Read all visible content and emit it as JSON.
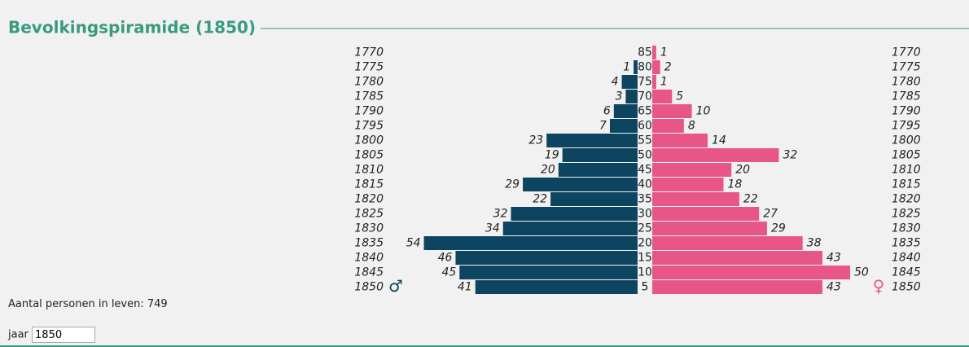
{
  "header": {
    "title": "Bevolkingspiramide (1850)"
  },
  "chart_data": {
    "type": "pyramid",
    "categories": [
      85,
      80,
      75,
      70,
      65,
      60,
      55,
      50,
      45,
      40,
      35,
      30,
      25,
      20,
      15,
      10,
      5
    ],
    "years": [
      1770,
      1775,
      1780,
      1785,
      1790,
      1795,
      1800,
      1805,
      1810,
      1815,
      1820,
      1825,
      1830,
      1835,
      1840,
      1845,
      1850
    ],
    "series": [
      {
        "name": "♂",
        "color": "#0d4460",
        "values": [
          null,
          1,
          4,
          3,
          6,
          7,
          23,
          19,
          20,
          29,
          22,
          32,
          34,
          54,
          46,
          45,
          41
        ]
      },
      {
        "name": "♀",
        "color": "#e75686",
        "values": [
          1,
          2,
          1,
          5,
          10,
          8,
          14,
          32,
          20,
          18,
          22,
          27,
          29,
          38,
          43,
          50,
          43
        ]
      }
    ]
  },
  "summary": {
    "label": "Aantal personen in leven:",
    "value": 749
  },
  "control": {
    "label": "jaar",
    "value": "1850"
  }
}
